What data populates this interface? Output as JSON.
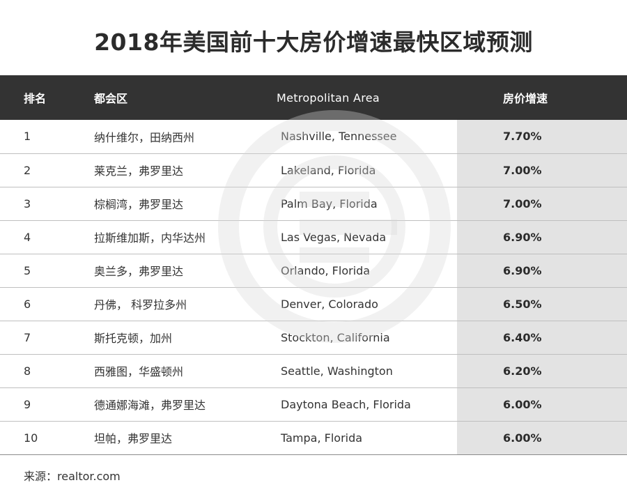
{
  "title": "2018年美国前十大房价增速最快区域预测",
  "colors": {
    "header_bg": "#333333",
    "growth_col_bg": "#e3e3e3",
    "row_divider": "#bfbfbf"
  },
  "watermark": "circle-logo",
  "chart_data": {
    "type": "table",
    "title": "2018年美国前十大房价增速最快区域预测",
    "columns": [
      "排名",
      "都会区",
      "Metropolitan Area",
      "房价增速"
    ],
    "rows": [
      {
        "rank": "1",
        "cn": "纳什维尔，田纳西州",
        "en": "Nashville, Tennessee",
        "growth": "7.70%"
      },
      {
        "rank": "2",
        "cn": "莱克兰，弗罗里达",
        "en": "Lakeland, Florida",
        "growth": "7.00%"
      },
      {
        "rank": "3",
        "cn": "棕榈湾，弗罗里达",
        "en": "Palm Bay, Florida",
        "growth": "7.00%"
      },
      {
        "rank": "4",
        "cn": "拉斯维加斯，内华达州",
        "en": "Las Vegas, Nevada",
        "growth": "6.90%"
      },
      {
        "rank": "5",
        "cn": "奥兰多，弗罗里达",
        "en": "Orlando, Florida",
        "growth": "6.90%"
      },
      {
        "rank": "6",
        "cn": "丹佛， 科罗拉多州",
        "en": "Denver, Colorado",
        "growth": "6.50%"
      },
      {
        "rank": "7",
        "cn": "斯托克顿，加州",
        "en": "Stockton, California",
        "growth": "6.40%"
      },
      {
        "rank": "8",
        "cn": "西雅图，华盛顿州",
        "en": "Seattle, Washington",
        "growth": "6.20%"
      },
      {
        "rank": "9",
        "cn": "德通娜海滩，弗罗里达",
        "en": "Daytona Beach, Florida",
        "growth": "6.00%"
      },
      {
        "rank": "10",
        "cn": "坦帕，弗罗里达",
        "en": "Tampa, Florida",
        "growth": "6.00%"
      }
    ],
    "source": "来源：realtor.com"
  }
}
